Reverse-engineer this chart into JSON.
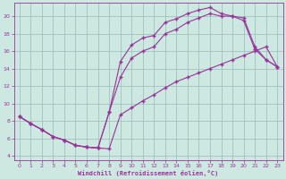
{
  "xlabel": "Windchill (Refroidissement éolien,°C)",
  "bg_color": "#cce8e0",
  "grid_color": "#99bbbb",
  "line_color": "#993399",
  "xlim": [
    -0.5,
    23.5
  ],
  "ylim": [
    3.5,
    21.5
  ],
  "xticks": [
    0,
    1,
    2,
    3,
    4,
    5,
    6,
    7,
    8,
    9,
    10,
    11,
    12,
    13,
    14,
    15,
    16,
    17,
    18,
    19,
    20,
    21,
    22,
    23
  ],
  "yticks": [
    4,
    6,
    8,
    10,
    12,
    14,
    16,
    18,
    20
  ],
  "curve_upper_x": [
    0,
    1,
    2,
    3,
    4,
    5,
    6,
    7,
    8,
    9,
    10,
    11,
    12,
    13,
    14,
    15,
    16,
    17,
    18,
    19,
    20,
    21,
    22,
    23
  ],
  "curve_upper_y": [
    8.5,
    7.7,
    7.0,
    6.2,
    5.8,
    5.2,
    5.0,
    4.9,
    9.0,
    14.8,
    16.7,
    17.5,
    17.8,
    19.3,
    19.7,
    20.3,
    20.7,
    21.0,
    20.3,
    20.0,
    19.8,
    16.5,
    15.0,
    14.2
  ],
  "curve_mid_x": [
    0,
    1,
    2,
    3,
    4,
    5,
    6,
    7,
    8,
    9,
    10,
    11,
    12,
    13,
    14,
    15,
    16,
    17,
    18,
    19,
    20,
    21,
    22,
    23
  ],
  "curve_mid_y": [
    8.5,
    7.7,
    7.0,
    6.2,
    5.8,
    5.2,
    5.0,
    4.9,
    9.0,
    13.0,
    15.2,
    16.0,
    16.5,
    18.0,
    18.5,
    19.3,
    19.8,
    20.3,
    20.0,
    20.0,
    19.5,
    16.2,
    15.0,
    14.2
  ],
  "curve_lower_x": [
    0,
    1,
    2,
    3,
    4,
    5,
    6,
    7,
    8,
    9,
    10,
    11,
    12,
    13,
    14,
    15,
    16,
    17,
    18,
    19,
    20,
    21,
    22,
    23
  ],
  "curve_lower_y": [
    8.5,
    7.7,
    7.0,
    6.2,
    5.8,
    5.2,
    5.0,
    4.9,
    4.8,
    8.7,
    9.5,
    10.3,
    11.0,
    11.8,
    12.5,
    13.0,
    13.5,
    14.0,
    14.5,
    15.0,
    15.5,
    16.0,
    16.5,
    14.2
  ]
}
